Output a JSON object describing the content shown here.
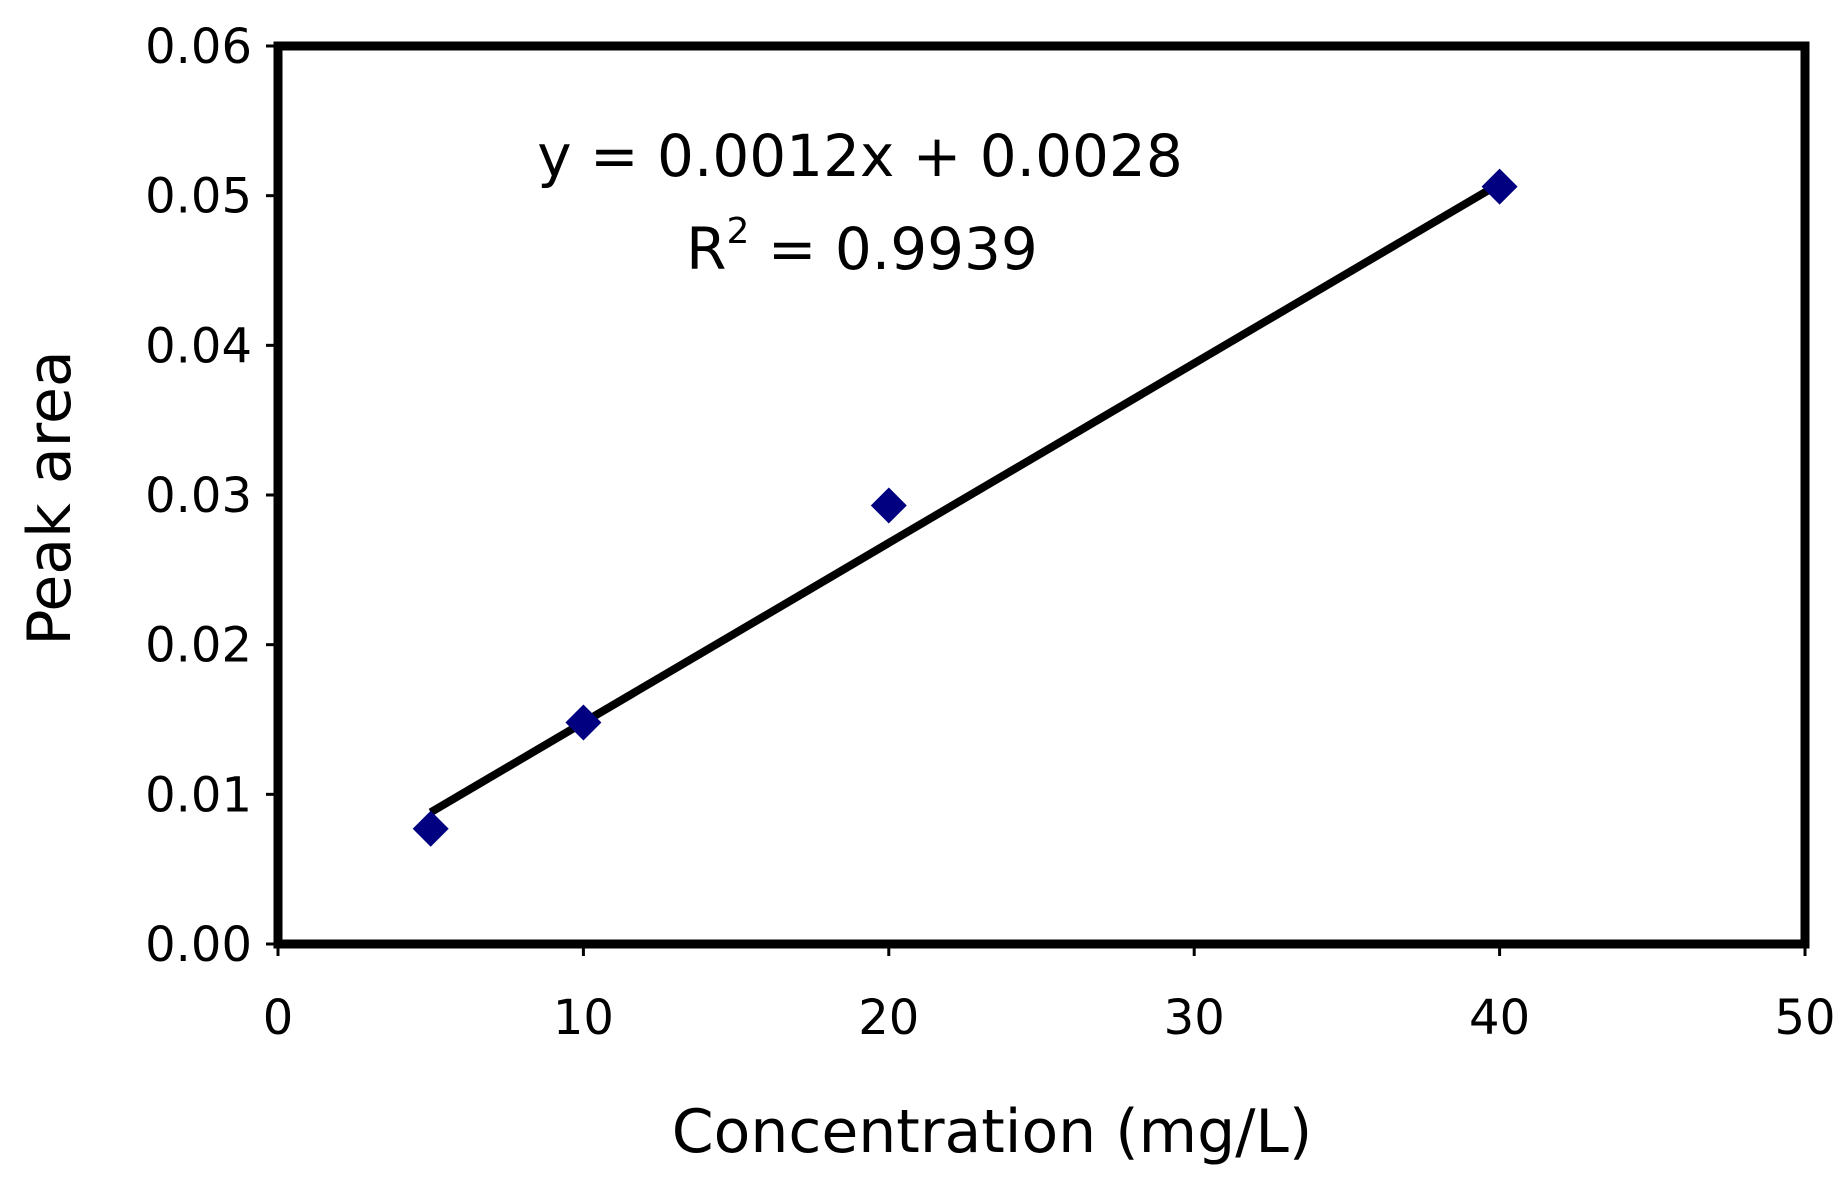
{
  "chart_data": {
    "type": "scatter",
    "title": "",
    "xlabel": "Concentration (mg/L)",
    "ylabel": "Peak area",
    "xlim": [
      0,
      50
    ],
    "ylim": [
      0,
      0.06
    ],
    "x_ticks": [
      "0",
      "10",
      "20",
      "30",
      "40",
      "50"
    ],
    "y_ticks": [
      "0.00",
      "0.01",
      "0.02",
      "0.03",
      "0.04",
      "0.05",
      "0.06"
    ],
    "grid": false,
    "legend": "none",
    "series": [
      {
        "x": [
          5,
          10,
          20,
          40
        ],
        "y": [
          0.0077,
          0.0148,
          0.0293,
          0.0506
        ],
        "marker": "diamond",
        "color": "#000080"
      }
    ],
    "trendline": {
      "slope": 0.0012,
      "intercept": 0.0028,
      "x_range": [
        5,
        40
      ],
      "color": "#000000"
    },
    "annotations": {
      "equation": "y = 0.0012x + 0.0028",
      "r2_base": "R",
      "r2_sup": "2",
      "r2_value": " = 0.9939"
    }
  }
}
